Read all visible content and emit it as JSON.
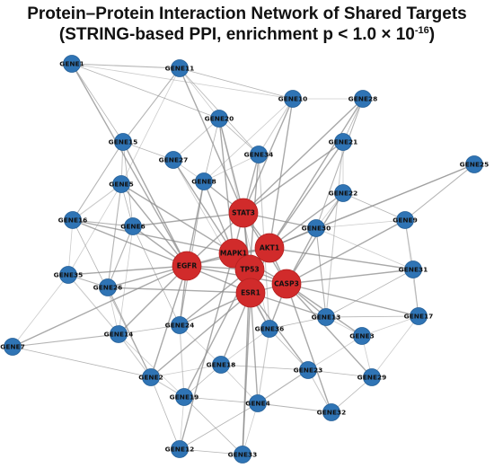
{
  "title": {
    "line1": "Protein–Protein Interaction Network of Shared Targets",
    "line2_prefix": "(STRING-based PPI, enrichment p < 1.0 × 10",
    "line2_exponent": "-16",
    "line2_suffix": ")"
  },
  "colors": {
    "peripheral_node": "#2f74b5",
    "hub_node": "#d12b2b",
    "edge": "#8c8c8c",
    "label": "#111111"
  },
  "nodes": [
    {
      "id": "GENE1",
      "type": "peripheral"
    },
    {
      "id": "GENE11",
      "type": "peripheral"
    },
    {
      "id": "GENE10",
      "type": "peripheral"
    },
    {
      "id": "GENE28",
      "type": "peripheral"
    },
    {
      "id": "GENE20",
      "type": "peripheral"
    },
    {
      "id": "GENE15",
      "type": "peripheral"
    },
    {
      "id": "GENE21",
      "type": "peripheral"
    },
    {
      "id": "GENE27",
      "type": "peripheral"
    },
    {
      "id": "GENE34",
      "type": "peripheral"
    },
    {
      "id": "GENE25",
      "type": "peripheral"
    },
    {
      "id": "GENE5",
      "type": "peripheral"
    },
    {
      "id": "GENE8",
      "type": "peripheral"
    },
    {
      "id": "GENE22",
      "type": "peripheral"
    },
    {
      "id": "GENE16",
      "type": "peripheral"
    },
    {
      "id": "GENE6",
      "type": "peripheral"
    },
    {
      "id": "GENE30",
      "type": "peripheral"
    },
    {
      "id": "GENE9",
      "type": "peripheral"
    },
    {
      "id": "GENE35",
      "type": "peripheral"
    },
    {
      "id": "GENE26",
      "type": "peripheral"
    },
    {
      "id": "GENE31",
      "type": "peripheral"
    },
    {
      "id": "GENE13",
      "type": "peripheral"
    },
    {
      "id": "GENE17",
      "type": "peripheral"
    },
    {
      "id": "GENE14",
      "type": "peripheral"
    },
    {
      "id": "GENE24",
      "type": "peripheral"
    },
    {
      "id": "GENE36",
      "type": "peripheral"
    },
    {
      "id": "GENE3",
      "type": "peripheral"
    },
    {
      "id": "GENE7",
      "type": "peripheral"
    },
    {
      "id": "GENE18",
      "type": "peripheral"
    },
    {
      "id": "GENE23",
      "type": "peripheral"
    },
    {
      "id": "GENE29",
      "type": "peripheral"
    },
    {
      "id": "GENE2",
      "type": "peripheral"
    },
    {
      "id": "GENE19",
      "type": "peripheral"
    },
    {
      "id": "GENE4",
      "type": "peripheral"
    },
    {
      "id": "GENE32",
      "type": "peripheral"
    },
    {
      "id": "GENE12",
      "type": "peripheral"
    },
    {
      "id": "GENE33",
      "type": "peripheral"
    },
    {
      "id": "STAT3",
      "type": "hub"
    },
    {
      "id": "MAPK1",
      "type": "hub"
    },
    {
      "id": "AKT1",
      "type": "hub"
    },
    {
      "id": "EGFR",
      "type": "hub"
    },
    {
      "id": "TP53",
      "type": "hub"
    },
    {
      "id": "CASP3",
      "type": "hub"
    },
    {
      "id": "ESR1",
      "type": "hub"
    }
  ],
  "edges": [
    [
      "GENE1",
      "GENE11"
    ],
    [
      "GENE1",
      "GENE10"
    ],
    [
      "GENE1",
      "GENE15"
    ],
    [
      "GENE1",
      "EGFR"
    ],
    [
      "GENE1",
      "GENE20"
    ],
    [
      "GENE11",
      "GENE20"
    ],
    [
      "GENE11",
      "GENE15"
    ],
    [
      "GENE11",
      "GENE5"
    ],
    [
      "GENE11",
      "GENE34"
    ],
    [
      "GENE11",
      "STAT3"
    ],
    [
      "GENE11",
      "GENE10"
    ],
    [
      "GENE10",
      "GENE28"
    ],
    [
      "GENE10",
      "STAT3"
    ],
    [
      "GENE10",
      "GENE8"
    ],
    [
      "GENE10",
      "AKT1"
    ],
    [
      "GENE10",
      "GENE34"
    ],
    [
      "GENE28",
      "GENE21"
    ],
    [
      "GENE28",
      "STAT3"
    ],
    [
      "GENE28",
      "GENE30"
    ],
    [
      "GENE28",
      "AKT1"
    ],
    [
      "GENE20",
      "GENE34"
    ],
    [
      "GENE20",
      "GENE27"
    ],
    [
      "GENE20",
      "GENE8"
    ],
    [
      "GENE20",
      "STAT3"
    ],
    [
      "GENE20",
      "MAPK1"
    ],
    [
      "GENE20",
      "GENE36"
    ],
    [
      "GENE15",
      "GENE27"
    ],
    [
      "GENE15",
      "GENE5"
    ],
    [
      "GENE15",
      "GENE6"
    ],
    [
      "GENE15",
      "EGFR"
    ],
    [
      "GENE15",
      "GENE16"
    ],
    [
      "GENE21",
      "GENE22"
    ],
    [
      "GENE21",
      "AKT1"
    ],
    [
      "GENE21",
      "GENE13"
    ],
    [
      "GENE21",
      "STAT3"
    ],
    [
      "GENE27",
      "GENE8"
    ],
    [
      "GENE27",
      "MAPK1"
    ],
    [
      "GENE27",
      "GENE36"
    ],
    [
      "GENE34",
      "STAT3"
    ],
    [
      "GENE34",
      "GENE36"
    ],
    [
      "GENE34",
      "TP53"
    ],
    [
      "GENE34",
      "GENE8"
    ],
    [
      "GENE25",
      "GENE9"
    ],
    [
      "GENE25",
      "GENE30"
    ],
    [
      "GENE25",
      "AKT1"
    ],
    [
      "GENE5",
      "GENE16"
    ],
    [
      "GENE5",
      "GENE6"
    ],
    [
      "GENE5",
      "EGFR"
    ],
    [
      "GENE5",
      "GENE26"
    ],
    [
      "GENE5",
      "GENE35"
    ],
    [
      "GENE5",
      "MAPK1"
    ],
    [
      "GENE8",
      "STAT3"
    ],
    [
      "GENE8",
      "MAPK1"
    ],
    [
      "GENE8",
      "EGFR"
    ],
    [
      "GENE8",
      "GENE24"
    ],
    [
      "GENE22",
      "GENE30"
    ],
    [
      "GENE22",
      "CASP3"
    ],
    [
      "GENE22",
      "AKT1"
    ],
    [
      "GENE22",
      "GENE9"
    ],
    [
      "GENE16",
      "GENE35"
    ],
    [
      "GENE16",
      "GENE6"
    ],
    [
      "GENE16",
      "EGFR"
    ],
    [
      "GENE16",
      "GENE2"
    ],
    [
      "GENE16",
      "MAPK1"
    ],
    [
      "GENE6",
      "EGFR"
    ],
    [
      "GENE6",
      "STAT3"
    ],
    [
      "GENE6",
      "GENE26"
    ],
    [
      "GENE6",
      "GENE14"
    ],
    [
      "GENE6",
      "GENE24"
    ],
    [
      "GENE30",
      "AKT1"
    ],
    [
      "GENE30",
      "CASP3"
    ],
    [
      "GENE30",
      "GENE9"
    ],
    [
      "GENE30",
      "GENE13"
    ],
    [
      "GENE30",
      "GENE31"
    ],
    [
      "GENE30",
      "STAT3"
    ],
    [
      "GENE9",
      "GENE31"
    ],
    [
      "GENE9",
      "CASP3"
    ],
    [
      "GENE9",
      "GENE17"
    ],
    [
      "GENE35",
      "GENE26"
    ],
    [
      "GENE35",
      "GENE7"
    ],
    [
      "GENE35",
      "EGFR"
    ],
    [
      "GENE35",
      "GENE14"
    ],
    [
      "GENE26",
      "EGFR"
    ],
    [
      "GENE26",
      "GENE14"
    ],
    [
      "GENE26",
      "GENE2"
    ],
    [
      "GENE26",
      "ESR1"
    ],
    [
      "GENE31",
      "GENE17"
    ],
    [
      "GENE31",
      "CASP3"
    ],
    [
      "GENE31",
      "GENE13"
    ],
    [
      "GENE31",
      "AKT1"
    ],
    [
      "GENE13",
      "CASP3"
    ],
    [
      "GENE13",
      "GENE3"
    ],
    [
      "GENE13",
      "GENE17"
    ],
    [
      "GENE13",
      "ESR1"
    ],
    [
      "GENE13",
      "GENE36"
    ],
    [
      "GENE17",
      "GENE29"
    ],
    [
      "GENE17",
      "CASP3"
    ],
    [
      "GENE17",
      "GENE3"
    ],
    [
      "GENE14",
      "GENE24"
    ],
    [
      "GENE14",
      "GENE2"
    ],
    [
      "GENE14",
      "EGFR"
    ],
    [
      "GENE14",
      "GENE19"
    ],
    [
      "GENE14",
      "GENE7"
    ],
    [
      "GENE24",
      "GENE18"
    ],
    [
      "GENE24",
      "ESR1"
    ],
    [
      "GENE24",
      "GENE19"
    ],
    [
      "GENE24",
      "TP53"
    ],
    [
      "GENE24",
      "EGFR"
    ],
    [
      "GENE36",
      "ESR1"
    ],
    [
      "GENE36",
      "GENE18"
    ],
    [
      "GENE36",
      "GENE23"
    ],
    [
      "GENE36",
      "GENE4"
    ],
    [
      "GENE36",
      "CASP3"
    ],
    [
      "GENE3",
      "GENE29"
    ],
    [
      "GENE3",
      "CASP3"
    ],
    [
      "GENE3",
      "GENE23"
    ],
    [
      "GENE7",
      "GENE2"
    ],
    [
      "GENE7",
      "EGFR"
    ],
    [
      "GENE18",
      "GENE19"
    ],
    [
      "GENE18",
      "GENE4"
    ],
    [
      "GENE18",
      "ESR1"
    ],
    [
      "GENE18",
      "GENE2"
    ],
    [
      "GENE18",
      "GENE23"
    ],
    [
      "GENE23",
      "GENE32"
    ],
    [
      "GENE23",
      "GENE29"
    ],
    [
      "GENE23",
      "ESR1"
    ],
    [
      "GENE23",
      "GENE4"
    ],
    [
      "GENE29",
      "CASP3"
    ],
    [
      "GENE29",
      "GENE32"
    ],
    [
      "GENE2",
      "GENE19"
    ],
    [
      "GENE2",
      "GENE12"
    ],
    [
      "GENE2",
      "EGFR"
    ],
    [
      "GENE2",
      "ESR1"
    ],
    [
      "GENE19",
      "GENE12"
    ],
    [
      "GENE19",
      "GENE4"
    ],
    [
      "GENE19",
      "TP53"
    ],
    [
      "GENE19",
      "GENE33"
    ],
    [
      "GENE4",
      "GENE33"
    ],
    [
      "GENE4",
      "GENE32"
    ],
    [
      "GENE4",
      "ESR1"
    ],
    [
      "GENE4",
      "GENE12"
    ],
    [
      "GENE32",
      "CASP3"
    ],
    [
      "GENE12",
      "GENE33"
    ],
    [
      "GENE12",
      "MAPK1"
    ],
    [
      "GENE33",
      "ESR1"
    ],
    [
      "GENE33",
      "TP53"
    ],
    [
      "STAT3",
      "MAPK1"
    ],
    [
      "STAT3",
      "AKT1"
    ],
    [
      "STAT3",
      "EGFR"
    ],
    [
      "STAT3",
      "TP53"
    ],
    [
      "STAT3",
      "CASP3"
    ],
    [
      "STAT3",
      "ESR1"
    ],
    [
      "MAPK1",
      "AKT1"
    ],
    [
      "MAPK1",
      "EGFR"
    ],
    [
      "MAPK1",
      "TP53"
    ],
    [
      "MAPK1",
      "CASP3"
    ],
    [
      "MAPK1",
      "ESR1"
    ],
    [
      "AKT1",
      "EGFR"
    ],
    [
      "AKT1",
      "TP53"
    ],
    [
      "AKT1",
      "CASP3"
    ],
    [
      "AKT1",
      "ESR1"
    ],
    [
      "EGFR",
      "TP53"
    ],
    [
      "EGFR",
      "CASP3"
    ],
    [
      "EGFR",
      "ESR1"
    ],
    [
      "TP53",
      "CASP3"
    ],
    [
      "TP53",
      "ESR1"
    ],
    [
      "CASP3",
      "ESR1"
    ]
  ]
}
